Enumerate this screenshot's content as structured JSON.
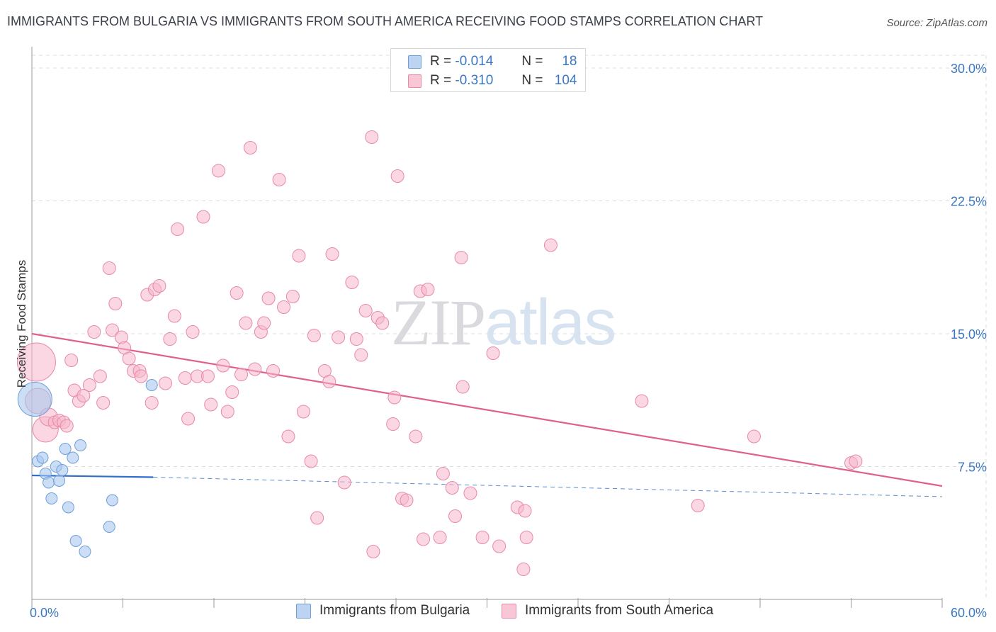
{
  "title": "IMMIGRANTS FROM BULGARIA VS IMMIGRANTS FROM SOUTH AMERICA RECEIVING FOOD STAMPS CORRELATION CHART",
  "source": "Source: ZipAtlas.com",
  "watermark": {
    "zip": "ZIP",
    "atlas": "atlas"
  },
  "legend": {
    "rows": [
      {
        "r_label": "R =",
        "r_value": "-0.014",
        "n_label": "N =",
        "n_value": "18"
      },
      {
        "r_label": "R =",
        "r_value": "-0.310",
        "n_label": "N =",
        "n_value": "104"
      }
    ]
  },
  "colors": {
    "bulgaria_fill": "#a9c8ee",
    "bulgaria_stroke": "#6f9fd8",
    "bulgaria_line": "#2f6fc9",
    "sa_fill": "#f6b7ca",
    "sa_stroke": "#e889a8",
    "sa_line": "#e0608c",
    "grid": "#dcdcdc",
    "accent": "#3b78c4"
  },
  "chart_data": {
    "type": "scatter",
    "title": "IMMIGRANTS FROM BULGARIA VS IMMIGRANTS FROM SOUTH AMERICA RECEIVING FOOD STAMPS CORRELATION CHART",
    "xlabel": "",
    "ylabel": "Receiving Food Stamps",
    "xlim": [
      0,
      60
    ],
    "ylim": [
      0,
      30
    ],
    "x_tick_labels": [
      "0.0%",
      "60.0%"
    ],
    "y_ticks": [
      7.5,
      15.0,
      22.5,
      30.0
    ],
    "y_tick_labels": [
      "7.5%",
      "15.0%",
      "22.5%",
      "30.0%"
    ],
    "grid": true,
    "legend_position": "top-center",
    "series": [
      {
        "name": "Immigrants from Bulgaria",
        "r": -0.014,
        "n": 18,
        "trend": {
          "x0": 0,
          "y0": 7.0,
          "x1": 8,
          "y1": 6.9,
          "dashed_to_x": 60,
          "dashed_to_y": 5.8
        },
        "points": [
          {
            "x": 0.2,
            "y": 11.3,
            "s": 3
          },
          {
            "x": 0.4,
            "y": 7.8,
            "s": 1
          },
          {
            "x": 0.7,
            "y": 8.0,
            "s": 1
          },
          {
            "x": 0.9,
            "y": 7.1,
            "s": 1
          },
          {
            "x": 1.1,
            "y": 6.6,
            "s": 1
          },
          {
            "x": 1.3,
            "y": 5.7,
            "s": 1
          },
          {
            "x": 1.6,
            "y": 7.5,
            "s": 1
          },
          {
            "x": 1.8,
            "y": 6.7,
            "s": 1
          },
          {
            "x": 2.0,
            "y": 7.3,
            "s": 1
          },
          {
            "x": 2.2,
            "y": 8.5,
            "s": 1
          },
          {
            "x": 2.4,
            "y": 5.2,
            "s": 1
          },
          {
            "x": 2.7,
            "y": 8.0,
            "s": 1
          },
          {
            "x": 2.9,
            "y": 3.3,
            "s": 1
          },
          {
            "x": 3.2,
            "y": 8.7,
            "s": 1
          },
          {
            "x": 3.5,
            "y": 2.7,
            "s": 1
          },
          {
            "x": 5.1,
            "y": 4.1,
            "s": 1
          },
          {
            "x": 5.3,
            "y": 5.6,
            "s": 1
          },
          {
            "x": 7.9,
            "y": 12.1,
            "s": 1
          }
        ]
      },
      {
        "name": "Immigrants from South America",
        "r": -0.31,
        "n": 104,
        "trend": {
          "x0": 0,
          "y0": 15.0,
          "x1": 60,
          "y1": 6.4
        },
        "points": [
          {
            "x": 0.3,
            "y": 13.4,
            "s": 3
          },
          {
            "x": 0.4,
            "y": 11.2,
            "s": 2
          },
          {
            "x": 0.9,
            "y": 9.6,
            "s": 2
          },
          {
            "x": 1.1,
            "y": 10.3,
            "s": 1.4
          },
          {
            "x": 1.5,
            "y": 10.0,
            "s": 1
          },
          {
            "x": 1.8,
            "y": 10.1,
            "s": 1
          },
          {
            "x": 2.1,
            "y": 10.0,
            "s": 1
          },
          {
            "x": 2.3,
            "y": 9.8,
            "s": 1
          },
          {
            "x": 2.6,
            "y": 13.5,
            "s": 1
          },
          {
            "x": 2.8,
            "y": 11.8,
            "s": 1
          },
          {
            "x": 3.1,
            "y": 11.2,
            "s": 1
          },
          {
            "x": 3.4,
            "y": 11.5,
            "s": 1
          },
          {
            "x": 3.8,
            "y": 12.1,
            "s": 1
          },
          {
            "x": 4.1,
            "y": 15.1,
            "s": 1
          },
          {
            "x": 4.5,
            "y": 12.6,
            "s": 1
          },
          {
            "x": 4.7,
            "y": 11.1,
            "s": 1
          },
          {
            "x": 5.1,
            "y": 18.7,
            "s": 1
          },
          {
            "x": 5.3,
            "y": 15.2,
            "s": 1
          },
          {
            "x": 5.5,
            "y": 16.7,
            "s": 1
          },
          {
            "x": 5.9,
            "y": 14.8,
            "s": 1
          },
          {
            "x": 6.1,
            "y": 14.2,
            "s": 1
          },
          {
            "x": 6.4,
            "y": 13.6,
            "s": 1
          },
          {
            "x": 6.7,
            "y": 12.9,
            "s": 1
          },
          {
            "x": 7.1,
            "y": 12.9,
            "s": 1
          },
          {
            "x": 7.2,
            "y": 12.6,
            "s": 1
          },
          {
            "x": 7.6,
            "y": 17.2,
            "s": 1
          },
          {
            "x": 7.9,
            "y": 11.1,
            "s": 1
          },
          {
            "x": 8.1,
            "y": 17.5,
            "s": 1
          },
          {
            "x": 8.4,
            "y": 17.7,
            "s": 1
          },
          {
            "x": 8.8,
            "y": 12.2,
            "s": 1
          },
          {
            "x": 9.1,
            "y": 14.7,
            "s": 1
          },
          {
            "x": 9.4,
            "y": 16.0,
            "s": 1
          },
          {
            "x": 9.6,
            "y": 20.9,
            "s": 1
          },
          {
            "x": 10.1,
            "y": 12.5,
            "s": 1
          },
          {
            "x": 10.3,
            "y": 10.2,
            "s": 1
          },
          {
            "x": 10.6,
            "y": 15.1,
            "s": 1
          },
          {
            "x": 10.9,
            "y": 12.6,
            "s": 1
          },
          {
            "x": 11.3,
            "y": 21.6,
            "s": 1
          },
          {
            "x": 11.6,
            "y": 12.6,
            "s": 1
          },
          {
            "x": 11.8,
            "y": 11.0,
            "s": 1
          },
          {
            "x": 12.3,
            "y": 24.2,
            "s": 1
          },
          {
            "x": 12.6,
            "y": 13.2,
            "s": 1
          },
          {
            "x": 12.9,
            "y": 10.6,
            "s": 1
          },
          {
            "x": 13.2,
            "y": 11.7,
            "s": 1
          },
          {
            "x": 13.5,
            "y": 17.3,
            "s": 1
          },
          {
            "x": 13.8,
            "y": 12.7,
            "s": 1
          },
          {
            "x": 14.1,
            "y": 15.6,
            "s": 1
          },
          {
            "x": 14.4,
            "y": 25.5,
            "s": 1
          },
          {
            "x": 14.7,
            "y": 13.0,
            "s": 1
          },
          {
            "x": 15.1,
            "y": 15.1,
            "s": 1
          },
          {
            "x": 15.3,
            "y": 15.6,
            "s": 1
          },
          {
            "x": 15.6,
            "y": 17.0,
            "s": 1
          },
          {
            "x": 15.9,
            "y": 12.9,
            "s": 1
          },
          {
            "x": 16.3,
            "y": 23.7,
            "s": 1
          },
          {
            "x": 16.6,
            "y": 16.5,
            "s": 1
          },
          {
            "x": 16.9,
            "y": 9.2,
            "s": 1
          },
          {
            "x": 17.2,
            "y": 17.1,
            "s": 1
          },
          {
            "x": 17.6,
            "y": 19.4,
            "s": 1
          },
          {
            "x": 17.9,
            "y": 10.6,
            "s": 1
          },
          {
            "x": 18.4,
            "y": 7.8,
            "s": 1
          },
          {
            "x": 18.6,
            "y": 14.9,
            "s": 1
          },
          {
            "x": 18.8,
            "y": 4.6,
            "s": 1
          },
          {
            "x": 19.3,
            "y": 12.9,
            "s": 1
          },
          {
            "x": 19.6,
            "y": 12.3,
            "s": 1
          },
          {
            "x": 19.8,
            "y": 19.5,
            "s": 1
          },
          {
            "x": 20.2,
            "y": 14.8,
            "s": 1
          },
          {
            "x": 20.6,
            "y": 6.6,
            "s": 1
          },
          {
            "x": 21.1,
            "y": 17.9,
            "s": 1
          },
          {
            "x": 21.4,
            "y": 14.7,
            "s": 1
          },
          {
            "x": 21.7,
            "y": 13.8,
            "s": 1
          },
          {
            "x": 22.0,
            "y": 16.3,
            "s": 1
          },
          {
            "x": 22.4,
            "y": 26.1,
            "s": 1
          },
          {
            "x": 22.5,
            "y": 2.7,
            "s": 1
          },
          {
            "x": 22.8,
            "y": 15.9,
            "s": 1
          },
          {
            "x": 23.1,
            "y": 15.6,
            "s": 1
          },
          {
            "x": 23.8,
            "y": 9.9,
            "s": 1
          },
          {
            "x": 23.9,
            "y": 11.4,
            "s": 1
          },
          {
            "x": 24.1,
            "y": 23.9,
            "s": 1
          },
          {
            "x": 24.4,
            "y": 5.7,
            "s": 1
          },
          {
            "x": 24.7,
            "y": 5.6,
            "s": 1
          },
          {
            "x": 25.3,
            "y": 9.2,
            "s": 1
          },
          {
            "x": 25.6,
            "y": 17.4,
            "s": 1
          },
          {
            "x": 25.8,
            "y": 3.4,
            "s": 1
          },
          {
            "x": 26.1,
            "y": 17.5,
            "s": 1
          },
          {
            "x": 26.9,
            "y": 3.5,
            "s": 1
          },
          {
            "x": 27.1,
            "y": 7.1,
            "s": 1
          },
          {
            "x": 27.7,
            "y": 6.3,
            "s": 1
          },
          {
            "x": 27.9,
            "y": 4.7,
            "s": 1
          },
          {
            "x": 28.3,
            "y": 19.3,
            "s": 1
          },
          {
            "x": 28.4,
            "y": 12.0,
            "s": 1
          },
          {
            "x": 28.9,
            "y": 6.0,
            "s": 1
          },
          {
            "x": 29.7,
            "y": 3.5,
            "s": 1
          },
          {
            "x": 30.4,
            "y": 13.9,
            "s": 1
          },
          {
            "x": 30.8,
            "y": 3.0,
            "s": 1
          },
          {
            "x": 32.0,
            "y": 5.2,
            "s": 1
          },
          {
            "x": 32.4,
            "y": 1.7,
            "s": 1
          },
          {
            "x": 32.6,
            "y": 3.5,
            "s": 1
          },
          {
            "x": 32.5,
            "y": 5.0,
            "s": 1
          },
          {
            "x": 34.2,
            "y": 20.0,
            "s": 1
          },
          {
            "x": 40.2,
            "y": 11.2,
            "s": 1
          },
          {
            "x": 43.9,
            "y": 5.3,
            "s": 1
          },
          {
            "x": 47.6,
            "y": 9.2,
            "s": 1
          },
          {
            "x": 54.0,
            "y": 7.7,
            "s": 1
          },
          {
            "x": 54.3,
            "y": 7.8,
            "s": 1
          }
        ]
      }
    ]
  }
}
